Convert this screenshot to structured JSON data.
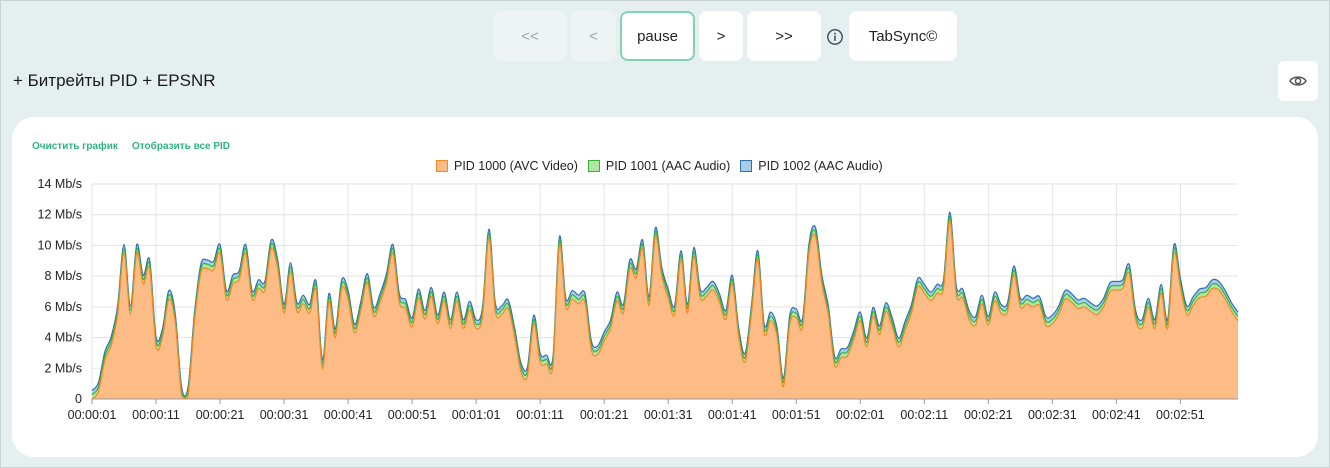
{
  "toolbar": {
    "buttons": [
      {
        "label": "<<",
        "state": "disabled"
      },
      {
        "label": "<",
        "state": "disabled"
      },
      {
        "label": "pause",
        "state": "active"
      },
      {
        "label": ">",
        "state": "normal"
      },
      {
        "label": ">>",
        "state": "normal"
      }
    ],
    "info_icon": "info-circle-icon",
    "tabsync_label": "TabSync©"
  },
  "section": {
    "title": "+ Битрейты PID + EPSNR",
    "eye_icon": "eye-icon"
  },
  "card": {
    "clear_link": "Очистить график",
    "show_all_link": "Отобразить все PID"
  },
  "chart_data": {
    "type": "area",
    "stacked": true,
    "grid": true,
    "legend_position": "top-center",
    "ylim": [
      0,
      14
    ],
    "yticks": [
      "0",
      "2 Mb/s",
      "4 Mb/s",
      "6 Mb/s",
      "8 Mb/s",
      "10 Mb/s",
      "12 Mb/s",
      "14 Mb/s"
    ],
    "xticks": [
      "00:00:01",
      "00:00:11",
      "00:00:21",
      "00:00:31",
      "00:00:41",
      "00:00:51",
      "00:01:01",
      "00:01:11",
      "00:01:21",
      "00:01:31",
      "00:01:41",
      "00:01:51",
      "00:02:01",
      "00:02:11",
      "00:02:21",
      "00:02:31",
      "00:02:41",
      "00:02:51"
    ],
    "x_start_s": 1,
    "x_step_s": 1,
    "series": [
      {
        "name": "PID 1000 (AVC Video)",
        "fill": "#fdbb85",
        "stroke": "#f08a24",
        "values": [
          0,
          0.5,
          2.5,
          3.5,
          5.5,
          9.5,
          5.5,
          9.5,
          7.5,
          8.5,
          3.5,
          4,
          6.5,
          5,
          0.2,
          0.2,
          5,
          8.2,
          8.5,
          8.4,
          9.5,
          6.5,
          7.5,
          7.8,
          9.5,
          6.5,
          7.2,
          7.1,
          9.8,
          8.5,
          5.6,
          8.3,
          5.7,
          6.2,
          5.6,
          7.1,
          2,
          6.3,
          4,
          7.2,
          6.5,
          4.3,
          5.8,
          7.6,
          5.4,
          6.3,
          7.6,
          9.5,
          6.3,
          5.9,
          4.7,
          6.6,
          5.2,
          6.7,
          4.9,
          6.4,
          4.6,
          6.4,
          4.6,
          5.8,
          4.6,
          5.4,
          10.5,
          5.7,
          5.5,
          5.9,
          4.1,
          1.8,
          1.5,
          4.9,
          2.4,
          2.3,
          2.2,
          10,
          6,
          6.5,
          6.2,
          6.3,
          3.2,
          2.9,
          3.8,
          4.6,
          6.4,
          5.6,
          8.5,
          7.9,
          9.8,
          6.1,
          10.6,
          8,
          6.6,
          5.5,
          9.1,
          5.6,
          9.3,
          6.6,
          6.7,
          7.1,
          6.3,
          5.2,
          7.5,
          4.1,
          2.4,
          5.5,
          9.1,
          4.3,
          5.1,
          4.1,
          0.8,
          4.9,
          5.3,
          4.7,
          9.6,
          10.6,
          7.5,
          5.5,
          2.2,
          2.7,
          2.8,
          3.9,
          5.1,
          3.4,
          5.4,
          4.2,
          5.7,
          4.7,
          3.4,
          4.5,
          5.6,
          7.3,
          6.9,
          6.4,
          6.9,
          7.2,
          11.6,
          6.8,
          6.6,
          5.2,
          4.8,
          6.2,
          4.8,
          6.4,
          5.6,
          5.7,
          8.1,
          6,
          6.2,
          6,
          6.1,
          4.8,
          4.9,
          5.5,
          6.5,
          6.3,
          5.9,
          6,
          5.7,
          5.5,
          6,
          7,
          7.1,
          7.2,
          8.2,
          5.2,
          4.6,
          6,
          4.6,
          6.9,
          4.6,
          9.5,
          7.3,
          5.5,
          6.1,
          6.6,
          6.7,
          7.2,
          7.1,
          6.5,
          5.7,
          5.1
        ]
      },
      {
        "name": "PID 1001 (AAC Audio)",
        "fill": "#b1e5a5",
        "stroke": "#33b53a",
        "values_const": 0.28
      },
      {
        "name": "PID 1002 (AAC Audio)",
        "fill": "#a6cdea",
        "stroke": "#2f6fb0",
        "values_const": 0.28
      }
    ]
  }
}
